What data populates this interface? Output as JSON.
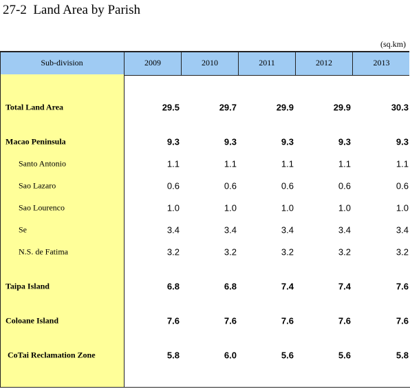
{
  "header": {
    "title": "27-2  Land Area by Parish",
    "unit": "(sq.km)"
  },
  "table": {
    "columns": [
      "Sub-division",
      "2009",
      "2010",
      "2011",
      "2012",
      "2013"
    ],
    "groups": [
      {
        "label": "Total Land Area",
        "values": [
          "29.5",
          "29.7",
          "29.9",
          "29.9",
          "30.3"
        ],
        "items": []
      },
      {
        "label": "Macao Peninsula",
        "values": [
          "9.3",
          "9.3",
          "9.3",
          "9.3",
          "9.3"
        ],
        "items": [
          {
            "label": "Santo Antonio",
            "values": [
              "1.1",
              "1.1",
              "1.1",
              "1.1",
              "1.1"
            ]
          },
          {
            "label": "Sao Lazaro",
            "values": [
              "0.6",
              "0.6",
              "0.6",
              "0.6",
              "0.6"
            ]
          },
          {
            "label": "Sao Lourenco",
            "values": [
              "1.0",
              "1.0",
              "1.0",
              "1.0",
              "1.0"
            ]
          },
          {
            "label": "Se",
            "values": [
              "3.4",
              "3.4",
              "3.4",
              "3.4",
              "3.4"
            ]
          },
          {
            "label": "N.S. de Fatima",
            "values": [
              "3.2",
              "3.2",
              "3.2",
              "3.2",
              "3.2"
            ]
          }
        ]
      },
      {
        "label": "Taipa Island",
        "values": [
          "6.8",
          "6.8",
          "7.4",
          "7.4",
          "7.6"
        ],
        "items": []
      },
      {
        "label": "Coloane Island",
        "values": [
          "7.6",
          "7.6",
          "7.6",
          "7.6",
          "7.6"
        ],
        "items": []
      },
      {
        "label": " CoTai Reclamation Zone",
        "values": [
          "5.8",
          "6.0",
          "5.6",
          "5.6",
          "5.8"
        ],
        "items": []
      }
    ]
  }
}
